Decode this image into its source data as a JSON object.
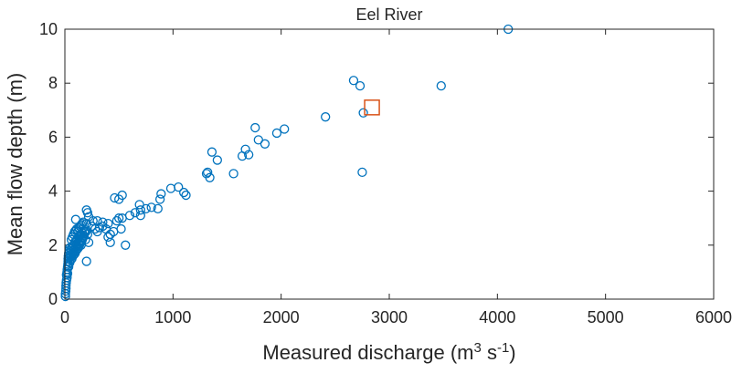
{
  "chart_data": {
    "type": "scatter",
    "title": "Eel River",
    "xlabel": {
      "base": "Measured discharge (m",
      "sup1": "3",
      "mid": " s",
      "sup2": "-1",
      "end": ")"
    },
    "ylabel": "Mean flow depth (m)",
    "xlim": [
      0,
      6000
    ],
    "ylim": [
      0,
      10
    ],
    "xticks": [
      0,
      1000,
      2000,
      3000,
      4000,
      5000,
      6000
    ],
    "yticks": [
      0,
      2,
      4,
      6,
      8,
      10
    ],
    "xtick_labels": [
      "0",
      "1000",
      "2000",
      "3000",
      "4000",
      "5000",
      "6000"
    ],
    "ytick_labels": [
      "0",
      "2",
      "4",
      "6",
      "8",
      "10"
    ],
    "grid": false,
    "series": [
      {
        "marker": "circle",
        "color": "#0072BD",
        "points": [
          [
            5,
            0.1
          ],
          [
            5,
            0.2
          ],
          [
            8,
            0.3
          ],
          [
            10,
            0.4
          ],
          [
            10,
            0.5
          ],
          [
            12,
            0.6
          ],
          [
            15,
            0.7
          ],
          [
            15,
            0.9
          ],
          [
            20,
            1.0
          ],
          [
            22,
            1.1
          ],
          [
            25,
            1.2
          ],
          [
            28,
            1.3
          ],
          [
            30,
            1.5
          ],
          [
            32,
            1.6
          ],
          [
            35,
            1.7
          ],
          [
            40,
            1.8
          ],
          [
            45,
            1.9
          ],
          [
            30,
            1.4
          ],
          [
            40,
            1.55
          ],
          [
            50,
            1.65
          ],
          [
            55,
            1.75
          ],
          [
            60,
            1.85
          ],
          [
            70,
            1.95
          ],
          [
            80,
            2.0
          ],
          [
            90,
            2.1
          ],
          [
            100,
            2.15
          ],
          [
            110,
            2.2
          ],
          [
            120,
            2.25
          ],
          [
            130,
            2.3
          ],
          [
            140,
            2.35
          ],
          [
            150,
            2.4
          ],
          [
            160,
            2.45
          ],
          [
            170,
            2.3
          ],
          [
            180,
            2.5
          ],
          [
            190,
            2.2
          ],
          [
            200,
            2.55
          ],
          [
            210,
            2.4
          ],
          [
            220,
            2.1
          ],
          [
            60,
            1.6
          ],
          [
            70,
            1.7
          ],
          [
            80,
            1.8
          ],
          [
            90,
            1.75
          ],
          [
            100,
            1.9
          ],
          [
            110,
            2.0
          ],
          [
            120,
            1.95
          ],
          [
            130,
            2.05
          ],
          [
            140,
            2.15
          ],
          [
            150,
            2.0
          ],
          [
            160,
            2.2
          ],
          [
            20,
            0.8
          ],
          [
            25,
            0.95
          ],
          [
            35,
            1.2
          ],
          [
            45,
            1.35
          ],
          [
            55,
            1.45
          ],
          [
            65,
            1.5
          ],
          [
            75,
            1.6
          ],
          [
            85,
            1.65
          ],
          [
            95,
            1.7
          ],
          [
            105,
            1.8
          ],
          [
            115,
            1.85
          ],
          [
            125,
            1.9
          ],
          [
            135,
            2.0
          ],
          [
            145,
            2.1
          ],
          [
            155,
            2.15
          ],
          [
            165,
            2.25
          ],
          [
            175,
            2.35
          ],
          [
            185,
            2.45
          ],
          [
            195,
            2.5
          ],
          [
            60,
            2.2
          ],
          [
            70,
            2.3
          ],
          [
            80,
            2.4
          ],
          [
            90,
            2.5
          ],
          [
            100,
            2.55
          ],
          [
            110,
            2.6
          ],
          [
            120,
            2.5
          ],
          [
            130,
            2.65
          ],
          [
            140,
            2.7
          ],
          [
            150,
            2.75
          ],
          [
            160,
            2.8
          ],
          [
            170,
            2.85
          ],
          [
            100,
            2.95
          ],
          [
            150,
            2.4
          ],
          [
            200,
            2.8
          ],
          [
            200,
            3.3
          ],
          [
            210,
            3.2
          ],
          [
            220,
            3.05
          ],
          [
            250,
            2.7
          ],
          [
            260,
            2.9
          ],
          [
            280,
            2.6
          ],
          [
            300,
            2.5
          ],
          [
            320,
            2.65
          ],
          [
            350,
            2.7
          ],
          [
            380,
            2.6
          ],
          [
            400,
            2.8
          ],
          [
            420,
            2.4
          ],
          [
            450,
            2.5
          ],
          [
            480,
            2.9
          ],
          [
            500,
            3.0
          ],
          [
            520,
            2.6
          ],
          [
            530,
            3.0
          ],
          [
            600,
            3.1
          ],
          [
            650,
            3.2
          ],
          [
            700,
            3.3
          ],
          [
            750,
            3.35
          ],
          [
            800,
            3.4
          ],
          [
            860,
            3.35
          ],
          [
            300,
            2.9
          ],
          [
            350,
            2.85
          ],
          [
            400,
            2.3
          ],
          [
            420,
            2.1
          ],
          [
            200,
            1.4
          ],
          [
            560,
            2.0
          ],
          [
            460,
            3.75
          ],
          [
            500,
            3.7
          ],
          [
            530,
            3.85
          ],
          [
            690,
            3.5
          ],
          [
            700,
            3.1
          ],
          [
            880,
            3.7
          ],
          [
            890,
            3.9
          ],
          [
            980,
            4.1
          ],
          [
            1050,
            4.15
          ],
          [
            1100,
            3.95
          ],
          [
            1120,
            3.85
          ],
          [
            1310,
            4.65
          ],
          [
            1320,
            4.7
          ],
          [
            1340,
            4.5
          ],
          [
            1360,
            5.45
          ],
          [
            1410,
            5.15
          ],
          [
            1560,
            4.65
          ],
          [
            1640,
            5.3
          ],
          [
            1670,
            5.55
          ],
          [
            1700,
            5.35
          ],
          [
            1760,
            6.35
          ],
          [
            1790,
            5.9
          ],
          [
            1850,
            5.75
          ],
          [
            1960,
            6.15
          ],
          [
            2030,
            6.3
          ],
          [
            2410,
            6.75
          ],
          [
            2670,
            8.1
          ],
          [
            2730,
            7.9
          ],
          [
            2760,
            6.9
          ],
          [
            2750,
            4.7
          ],
          [
            3480,
            7.9
          ],
          [
            4100,
            10.0
          ]
        ]
      },
      {
        "marker": "square",
        "color": "#D95319",
        "points": [
          [
            2840,
            7.1
          ]
        ]
      }
    ]
  }
}
